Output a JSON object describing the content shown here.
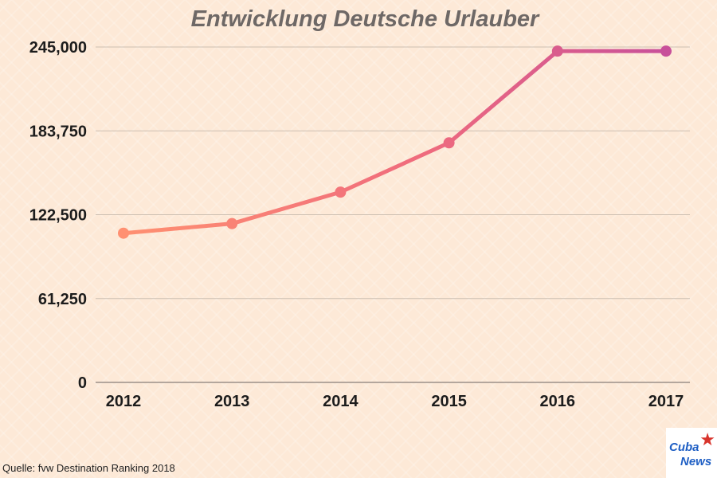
{
  "chart_data": {
    "type": "line",
    "title": "Entwicklung Deutsche Urlauber",
    "xlabel": "",
    "ylabel": "",
    "categories": [
      "2012",
      "2013",
      "2014",
      "2015",
      "2016",
      "2017"
    ],
    "series": [
      {
        "values": [
          109000,
          116000,
          139000,
          175000,
          242000,
          242000
        ]
      }
    ],
    "ylim": [
      0,
      245000
    ],
    "yticks": [
      0,
      61250,
      122500,
      183750,
      245000
    ],
    "ytick_labels": [
      "0",
      "61,250",
      "122,500",
      "183,750",
      "245,000"
    ],
    "grid": true,
    "line_gradient": [
      "#ff9071",
      "#ef6b7d",
      "#c8509a"
    ]
  },
  "source": "Quelle: fvw Destination Ranking 2018",
  "logo": {
    "line1": "Cuba",
    "line2": "News",
    "star": "★"
  }
}
